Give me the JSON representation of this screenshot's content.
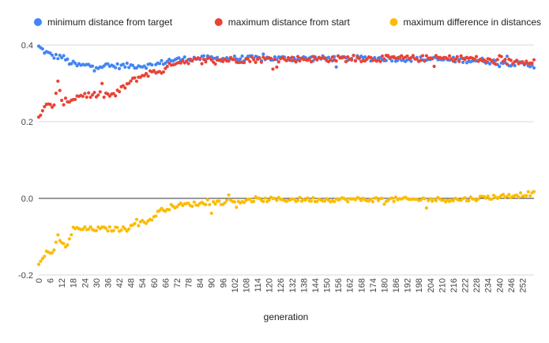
{
  "chart_data": {
    "type": "scatter",
    "title": "",
    "xlabel": "generation",
    "ylabel": "",
    "xlim": [
      0,
      258
    ],
    "ylim": [
      -0.2,
      0.4
    ],
    "grid": true,
    "legend_position": "top",
    "x_tick_labels": [
      "0",
      "6",
      "12",
      "18",
      "24",
      "30",
      "36",
      "42",
      "48",
      "54",
      "60",
      "66",
      "72",
      "78",
      "84",
      "90",
      "96",
      "102",
      "108",
      "114",
      "120",
      "126",
      "132",
      "138",
      "144",
      "150",
      "156",
      "162",
      "168",
      "174",
      "180",
      "186",
      "192",
      "198",
      "204",
      "210",
      "216",
      "222",
      "228",
      "234",
      "240",
      "246",
      "252"
    ],
    "y_tick_labels": [
      "-0.2",
      "0.0",
      "0.2",
      "0.4"
    ],
    "series": [
      {
        "name": "minimum distance from target",
        "color": "#4285F4",
        "anchors": [
          [
            0,
            0.395
          ],
          [
            4,
            0.38
          ],
          [
            8,
            0.37
          ],
          [
            12,
            0.37
          ],
          [
            16,
            0.355
          ],
          [
            20,
            0.347
          ],
          [
            40,
            0.345
          ],
          [
            60,
            0.347
          ],
          [
            68,
            0.36
          ],
          [
            80,
            0.365
          ],
          [
            120,
            0.365
          ],
          [
            180,
            0.365
          ],
          [
            230,
            0.36
          ],
          [
            240,
            0.355
          ],
          [
            258,
            0.347
          ]
        ],
        "jitter": 0.007
      },
      {
        "name": "maximum distance from start",
        "color": "#EA4335",
        "anchors": [
          [
            0,
            0.215
          ],
          [
            4,
            0.24
          ],
          [
            8,
            0.245
          ],
          [
            10,
            0.3
          ],
          [
            12,
            0.25
          ],
          [
            18,
            0.26
          ],
          [
            22,
            0.27
          ],
          [
            40,
            0.27
          ],
          [
            44,
            0.29
          ],
          [
            50,
            0.31
          ],
          [
            56,
            0.325
          ],
          [
            66,
            0.335
          ],
          [
            70,
            0.355
          ],
          [
            80,
            0.36
          ],
          [
            120,
            0.363
          ],
          [
            180,
            0.365
          ],
          [
            225,
            0.365
          ],
          [
            240,
            0.355
          ],
          [
            258,
            0.36
          ]
        ],
        "jitter": 0.008
      },
      {
        "name": "maximum difference in distances",
        "color": "#FBBC04",
        "anchors": [
          [
            0,
            -0.175
          ],
          [
            4,
            -0.14
          ],
          [
            8,
            -0.14
          ],
          [
            10,
            -0.1
          ],
          [
            14,
            -0.13
          ],
          [
            18,
            -0.08
          ],
          [
            46,
            -0.08
          ],
          [
            50,
            -0.06
          ],
          [
            58,
            -0.06
          ],
          [
            62,
            -0.035
          ],
          [
            70,
            -0.02
          ],
          [
            80,
            -0.015
          ],
          [
            96,
            -0.01
          ],
          [
            120,
            -0.003
          ],
          [
            180,
            -0.003
          ],
          [
            220,
            -0.003
          ],
          [
            240,
            0.005
          ],
          [
            258,
            0.013
          ]
        ],
        "jitter": 0.006
      }
    ]
  }
}
